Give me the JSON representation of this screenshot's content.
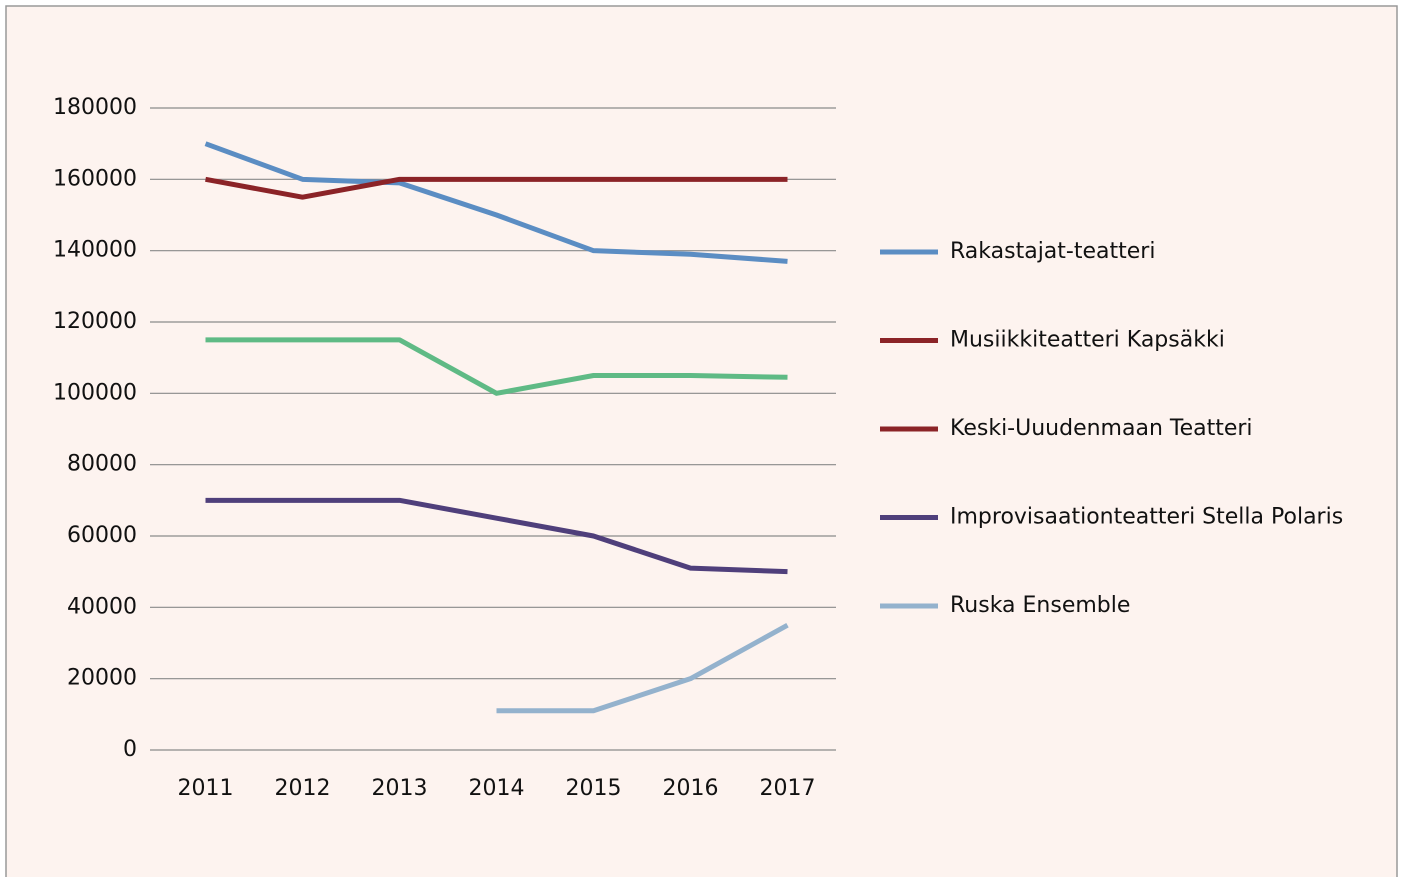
{
  "chart_data": {
    "type": "line",
    "categories": [
      "2011",
      "2012",
      "2013",
      "2014",
      "2015",
      "2016",
      "2017"
    ],
    "series": [
      {
        "name": "Rakastajat-teatteri",
        "color": "#5b8dc3",
        "values": [
          170000,
          160000,
          159000,
          150000,
          140000,
          139000,
          137000
        ]
      },
      {
        "name": "Musiikkiteatteri Kapsäkki",
        "color": "#8b2327",
        "values": [
          160000,
          155000,
          160000,
          160000,
          160000,
          160000,
          160000
        ]
      },
      {
        "name": "Keski-Uuudenmaan Teatteri",
        "color": "#5fba85",
        "legend_color": "#8b2327",
        "values": [
          115000,
          115000,
          115000,
          100000,
          105000,
          105000,
          104500
        ]
      },
      {
        "name": "Improvisaationteatteri Stella Polaris",
        "color": "#4f3f7b",
        "values": [
          70000,
          70000,
          70000,
          65000,
          60000,
          51000,
          50000
        ]
      },
      {
        "name": "Ruska Ensemble",
        "color": "#94b2cd",
        "values": [
          null,
          null,
          null,
          11000,
          11000,
          20000,
          35000
        ]
      }
    ],
    "ylim": [
      0,
      180000
    ],
    "yticks": [
      0,
      20000,
      40000,
      60000,
      80000,
      100000,
      120000,
      140000,
      160000,
      180000
    ],
    "grid": true,
    "legend": "right"
  }
}
